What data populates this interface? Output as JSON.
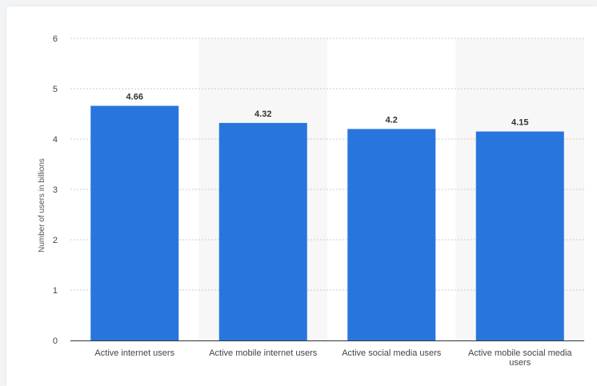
{
  "chart_data": {
    "type": "bar",
    "title": "",
    "xlabel": "",
    "ylabel": "Number of users in billions",
    "categories": [
      [
        "Active internet users"
      ],
      [
        "Active mobile internet users"
      ],
      [
        "Active social media users"
      ],
      [
        "Active mobile social media",
        "users"
      ]
    ],
    "values": [
      4.66,
      4.32,
      4.2,
      4.15
    ],
    "value_labels": [
      "4.66",
      "4.32",
      "4.2",
      "4.15"
    ],
    "ylim": [
      0,
      6
    ],
    "yticks": [
      "0",
      "1",
      "2",
      "3",
      "4",
      "5",
      "6"
    ],
    "grid": true,
    "bar_color": "#2876dd",
    "band_color": "#f7f7f7",
    "grid_color": "#cccccc"
  }
}
